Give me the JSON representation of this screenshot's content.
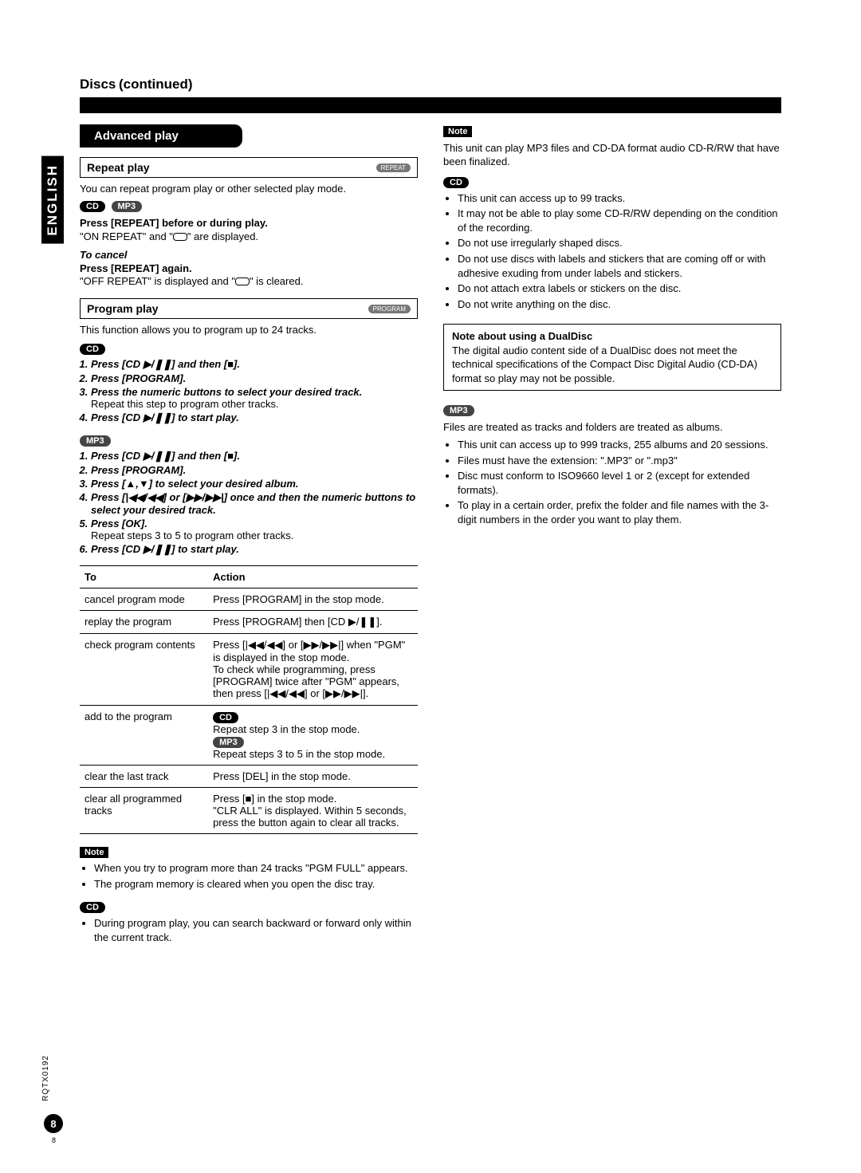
{
  "page": {
    "section_title": "Discs",
    "section_continued": "(continued)",
    "language_tab": "ENGLISH",
    "model_code": "RQTX0192",
    "page_number": "8",
    "tiny_page": "8"
  },
  "left": {
    "advanced_play": "Advanced play",
    "repeat": {
      "title": "Repeat play",
      "btn": "REPEAT",
      "intro": "You can repeat program play or other selected play mode.",
      "cd_badge": "CD",
      "mp3_badge": "MP3",
      "line1_b": "Press [REPEAT] before or during play.",
      "line1_t": "\"ON REPEAT\" and \"",
      "line1_t2": "\" are displayed.",
      "cancel_i": "To cancel",
      "cancel_b": "Press [REPEAT] again.",
      "cancel_t": "\"OFF REPEAT\" is displayed and \"",
      "cancel_t2": "\" is cleared."
    },
    "program": {
      "title": "Program play",
      "btn": "PROGRAM",
      "intro": "This function allows you to program up to 24 tracks.",
      "cd_badge": "CD",
      "mp3_badge": "MP3",
      "cd_steps": [
        {
          "b": "Press [CD ▶/❚❚] and then [■].",
          "n": ""
        },
        {
          "b": "Press [PROGRAM].",
          "n": ""
        },
        {
          "b": "Press the numeric buttons to select your desired track.",
          "n": "Repeat this step to program other tracks."
        },
        {
          "b": "Press [CD ▶/❚❚] to start play.",
          "n": ""
        }
      ],
      "mp3_steps": [
        {
          "b": "Press [CD ▶/❚❚] and then [■].",
          "n": ""
        },
        {
          "b": "Press [PROGRAM].",
          "n": ""
        },
        {
          "b": "Press [▲,▼] to select your desired album.",
          "n": ""
        },
        {
          "b": "Press [|◀◀/◀◀] or [▶▶/▶▶|] once and then the numeric buttons to select your desired track.",
          "n": ""
        },
        {
          "b": "Press [OK].",
          "n": "Repeat steps 3 to 5 to program other tracks."
        },
        {
          "b": "Press [CD ▶/❚❚] to start play.",
          "n": ""
        }
      ]
    },
    "table": {
      "h1": "To",
      "h2": "Action",
      "rows": [
        {
          "to": "cancel program mode",
          "action_html": "Press [PROGRAM] in the stop mode."
        },
        {
          "to": "replay the program",
          "action_html": "Press [PROGRAM] then [CD ▶/❚❚]."
        },
        {
          "to": "check program contents",
          "action_html": "Press [|◀◀/◀◀] or [▶▶/▶▶|] when \"PGM\" is displayed in the stop mode.\nTo check while programming, press [PROGRAM] twice after \"PGM\" appears, then press [|◀◀/◀◀] or [▶▶/▶▶|]."
        },
        {
          "to": "add to the program",
          "action_html": "CD_BADGE\nRepeat step 3 in the stop mode.\nMP3_BADGE\nRepeat steps 3 to 5 in the stop mode."
        },
        {
          "to": "clear the last track",
          "action_html": "Press [DEL] in the stop mode."
        },
        {
          "to": "clear all programmed tracks",
          "action_html": "Press [■] in the stop mode.\n\"CLR ALL\" is displayed. Within 5 seconds, press the button again to clear all tracks."
        }
      ]
    },
    "note1_badge": "Note",
    "note1_bullets": [
      "When you try to program more than 24 tracks \"PGM FULL\" appears.",
      "The program memory is cleared when you open the disc tray."
    ],
    "cd_note_badge": "CD",
    "cd_note_bullets": [
      "During program play, you can search backward or forward only within the current track."
    ]
  },
  "right": {
    "note_badge": "Note",
    "note_intro": "This unit can play MP3 files and CD-DA format audio CD-R/RW that have been finalized.",
    "cd_badge": "CD",
    "cd_bullets": [
      "This unit can access up to 99 tracks.",
      "It may not be able to play some CD-R/RW depending on the condition of the recording.",
      "Do not use irregularly shaped discs.",
      "Do not use discs with labels and stickers that are coming off or with adhesive exuding from under labels and stickers.",
      "Do not attach extra labels or stickers on the disc.",
      "Do not write anything on the disc."
    ],
    "dualdisc": {
      "title": "Note about using a DualDisc",
      "text": "The digital audio content side of a DualDisc does not meet the technical specifications of the Compact Disc Digital Audio (CD-DA) format so play may not be possible."
    },
    "mp3_badge": "MP3",
    "mp3_intro": "Files are treated as tracks and folders are treated as albums.",
    "mp3_bullets": [
      "This unit can access up to 999 tracks, 255 albums and 20 sessions.",
      "Files must have the extension: \".MP3\" or \".mp3\"",
      "Disc must conform to ISO9660 level 1 or 2 (except for extended formats).",
      "To play in a certain order, prefix the folder and file names with the 3-digit numbers in the order you want to play them."
    ]
  }
}
